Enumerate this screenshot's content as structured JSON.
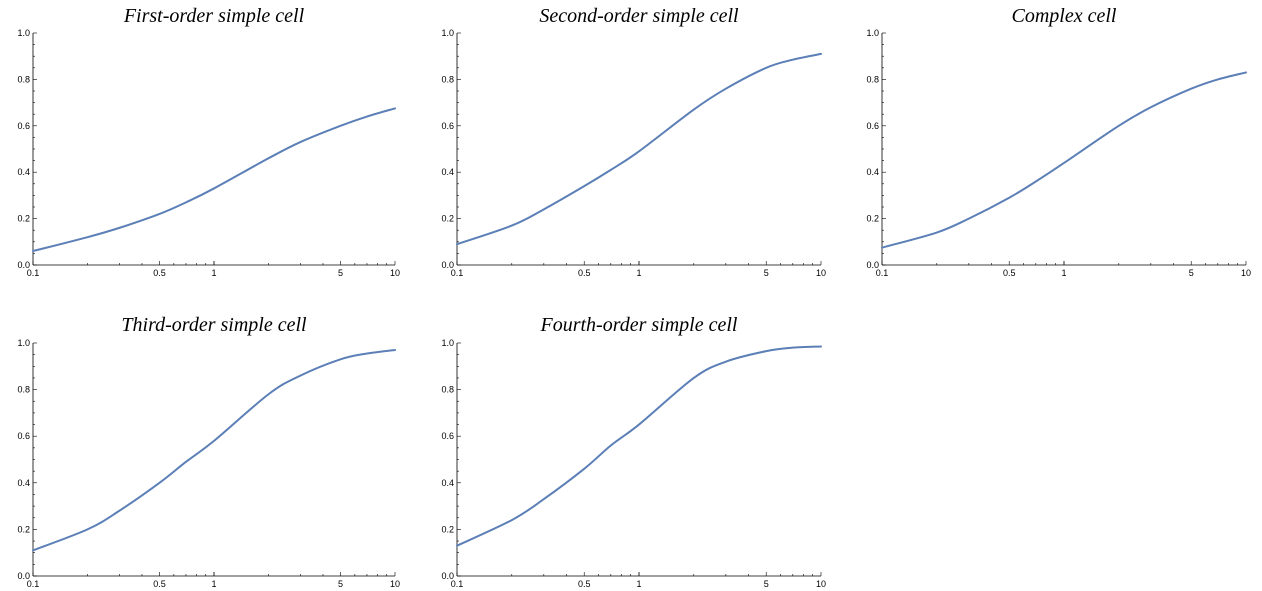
{
  "colors": {
    "curve": "#5b7fb6",
    "axis": "#000000",
    "background": "#ffffff"
  },
  "chart_data": [
    {
      "type": "line",
      "title": "First-order simple cell",
      "xscale": "log",
      "xlim": [
        0.1,
        10
      ],
      "ylim": [
        0,
        1
      ],
      "x_ticks": [
        "0.1",
        "0.5",
        "1",
        "5",
        "10"
      ],
      "y_ticks": [
        "0.0",
        "0.2",
        "0.4",
        "0.6",
        "0.8",
        "1.0"
      ],
      "grid": false,
      "series": [
        {
          "x": [
            0.1,
            0.2,
            0.3,
            0.5,
            0.7,
            1,
            2,
            3,
            5,
            7,
            10
          ],
          "y": [
            0.06,
            0.12,
            0.16,
            0.22,
            0.27,
            0.33,
            0.46,
            0.53,
            0.6,
            0.64,
            0.675
          ]
        }
      ]
    },
    {
      "type": "line",
      "title": "Second-order simple cell",
      "xscale": "log",
      "xlim": [
        0.1,
        10
      ],
      "ylim": [
        0,
        1
      ],
      "x_ticks": [
        "0.1",
        "0.5",
        "1",
        "5",
        "10"
      ],
      "y_ticks": [
        "0.0",
        "0.2",
        "0.4",
        "0.6",
        "0.8",
        "1.0"
      ],
      "grid": false,
      "series": [
        {
          "x": [
            0.1,
            0.2,
            0.3,
            0.5,
            0.7,
            1,
            2,
            3,
            5,
            7,
            10
          ],
          "y": [
            0.09,
            0.17,
            0.24,
            0.34,
            0.41,
            0.49,
            0.67,
            0.76,
            0.85,
            0.885,
            0.91
          ]
        }
      ]
    },
    {
      "type": "line",
      "title": "Complex cell",
      "xscale": "log",
      "xlim": [
        0.1,
        10
      ],
      "ylim": [
        0,
        1
      ],
      "x_ticks": [
        "0.1",
        "0.5",
        "1",
        "5",
        "10"
      ],
      "y_ticks": [
        "0.0",
        "0.2",
        "0.4",
        "0.6",
        "0.8",
        "1.0"
      ],
      "grid": false,
      "series": [
        {
          "x": [
            0.1,
            0.2,
            0.3,
            0.5,
            0.7,
            1,
            2,
            3,
            5,
            7,
            10
          ],
          "y": [
            0.075,
            0.14,
            0.2,
            0.29,
            0.36,
            0.44,
            0.6,
            0.68,
            0.76,
            0.8,
            0.83
          ]
        }
      ]
    },
    {
      "type": "line",
      "title": "Third-order simple cell",
      "xscale": "log",
      "xlim": [
        0.1,
        10
      ],
      "ylim": [
        0,
        1
      ],
      "x_ticks": [
        "0.1",
        "0.5",
        "1",
        "5",
        "10"
      ],
      "y_ticks": [
        "0.0",
        "0.2",
        "0.4",
        "0.6",
        "0.8",
        "1.0"
      ],
      "grid": false,
      "series": [
        {
          "x": [
            0.1,
            0.2,
            0.3,
            0.5,
            0.7,
            1,
            2,
            3,
            5,
            7,
            10
          ],
          "y": [
            0.11,
            0.2,
            0.28,
            0.4,
            0.49,
            0.58,
            0.78,
            0.86,
            0.93,
            0.955,
            0.97
          ]
        }
      ]
    },
    {
      "type": "line",
      "title": "Fourth-order simple cell",
      "xscale": "log",
      "xlim": [
        0.1,
        10
      ],
      "ylim": [
        0,
        1
      ],
      "x_ticks": [
        "0.1",
        "0.5",
        "1",
        "5",
        "10"
      ],
      "y_ticks": [
        "0.0",
        "0.2",
        "0.4",
        "0.6",
        "0.8",
        "1.0"
      ],
      "grid": false,
      "series": [
        {
          "x": [
            0.1,
            0.2,
            0.3,
            0.5,
            0.7,
            1,
            2,
            3,
            5,
            7,
            10
          ],
          "y": [
            0.13,
            0.24,
            0.33,
            0.46,
            0.56,
            0.65,
            0.85,
            0.92,
            0.965,
            0.98,
            0.985
          ]
        }
      ]
    }
  ]
}
